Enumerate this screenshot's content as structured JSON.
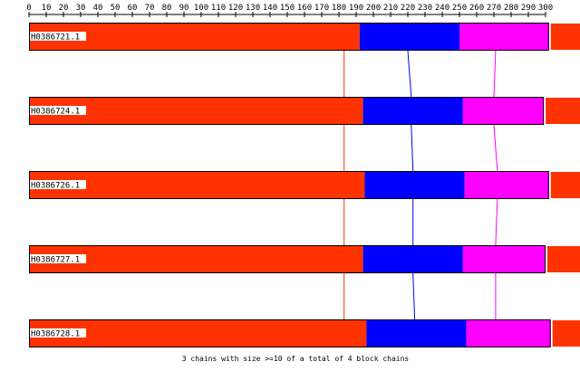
{
  "ruler": {
    "ticks": [
      0,
      10,
      20,
      30,
      40,
      50,
      60,
      70,
      80,
      90,
      100,
      110,
      120,
      130,
      140,
      150,
      160,
      170,
      180,
      190,
      200,
      210,
      220,
      230,
      240,
      250,
      260,
      270,
      280,
      290,
      300
    ]
  },
  "colors": {
    "block1": "#ff3300",
    "block2": "#0000ff",
    "block3": "#ff00ff",
    "connector1": "#ff3300",
    "connector2": "#0000ff",
    "connector3": "#ff00ff",
    "outline": "#000000"
  },
  "sequences": [
    {
      "id": "H0386721.1",
      "blocks": [
        {
          "start": 0,
          "end": 192
        },
        {
          "start": 192,
          "end": 250
        },
        {
          "start": 250,
          "end": 302
        }
      ],
      "overflow": true
    },
    {
      "id": "H0386724.1",
      "blocks": [
        {
          "start": 0,
          "end": 194
        },
        {
          "start": 194,
          "end": 252
        },
        {
          "start": 252,
          "end": 299
        }
      ],
      "overflow": true
    },
    {
      "id": "H0386726.1",
      "blocks": [
        {
          "start": 0,
          "end": 195
        },
        {
          "start": 195,
          "end": 253
        },
        {
          "start": 253,
          "end": 302
        }
      ],
      "overflow": true
    },
    {
      "id": "H0386727.1",
      "blocks": [
        {
          "start": 0,
          "end": 194
        },
        {
          "start": 194,
          "end": 252
        },
        {
          "start": 252,
          "end": 300
        }
      ],
      "overflow": true
    },
    {
      "id": "H0386728.1",
      "blocks": [
        {
          "start": 0,
          "end": 196
        },
        {
          "start": 196,
          "end": 254
        },
        {
          "start": 254,
          "end": 303
        }
      ],
      "overflow": true
    }
  ],
  "connectors": [
    {
      "series": "block1",
      "positions": [
        183,
        183,
        183,
        183,
        183
      ]
    },
    {
      "series": "block2",
      "positions": [
        220,
        222,
        223,
        223,
        224
      ]
    },
    {
      "series": "block3",
      "positions": [
        271,
        270,
        272,
        271,
        271
      ]
    }
  ],
  "caption": "3 chains with size >=10 of a total of 4 block chains"
}
